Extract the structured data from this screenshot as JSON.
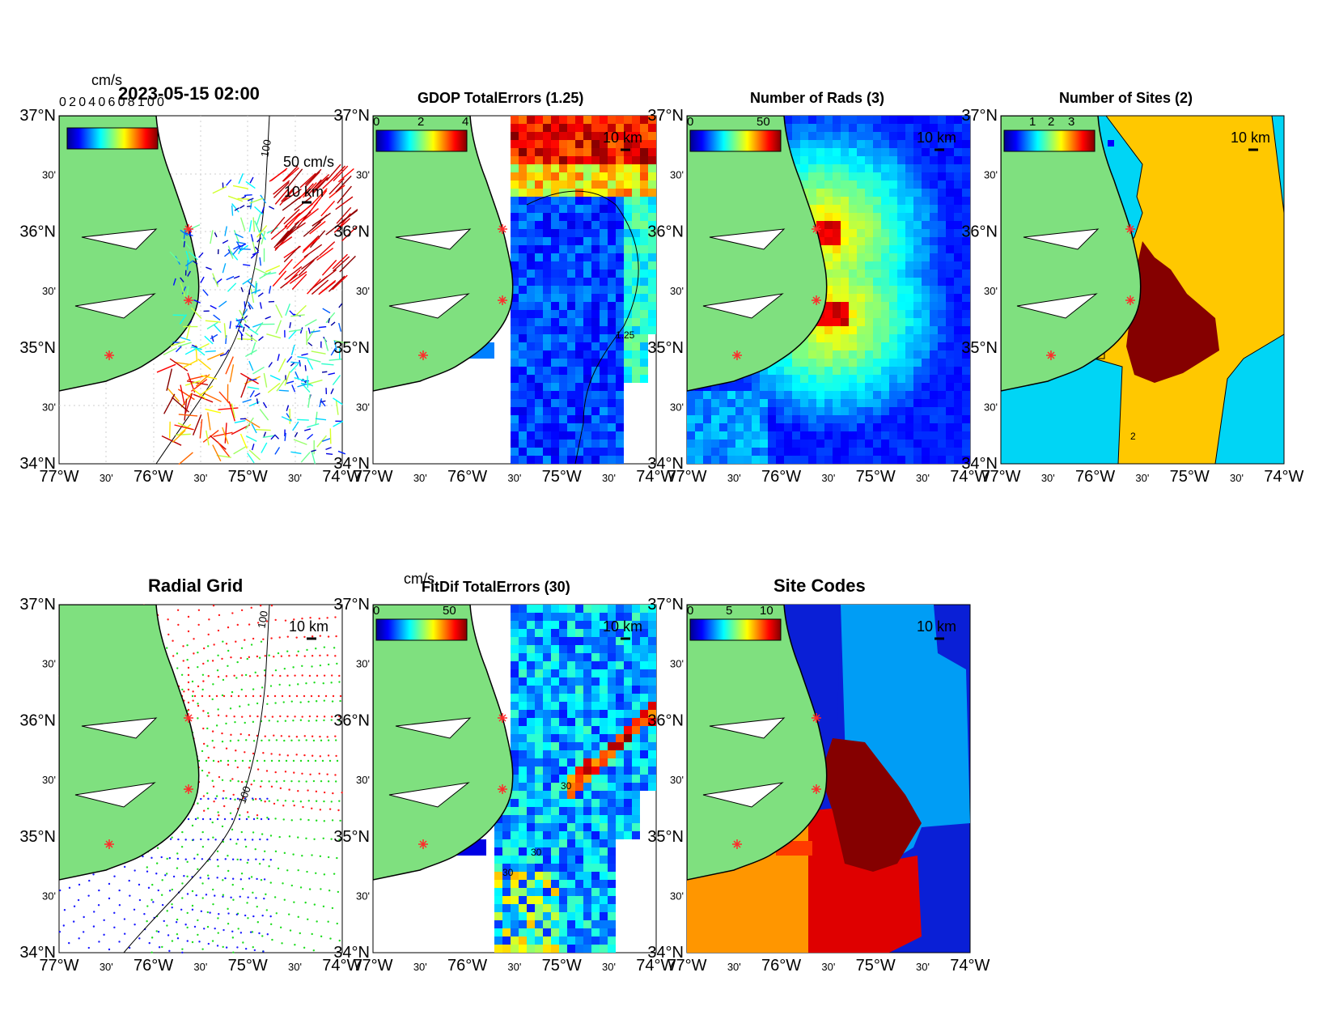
{
  "figure": {
    "timestamp": "2023-05-15 02:00",
    "colors": {
      "land": "#7fe07f",
      "ocean": "#ffffff",
      "site_marker": "#ff2a2a",
      "deep_blue": "#0a1fd6",
      "navy": "#00008f",
      "cyan": "#00d5f5",
      "gold": "#ffc800",
      "maroon": "#850000",
      "sky": "#009df5",
      "orange": "#ff9600",
      "red": "#df0000",
      "grid_red": "#ff1a1a",
      "grid_green": "#1fdc1f",
      "grid_blue": "#1a1aff"
    }
  },
  "axes": {
    "x_labels": [
      "77°W",
      "30'",
      "76°W",
      "30'",
      "75°W",
      "30'",
      "74°W"
    ],
    "y_labels": [
      "37°N",
      "30'",
      "36°N",
      "30'",
      "35°N",
      "30'",
      "34°N"
    ],
    "scale_bar_label": "10 km",
    "contour_100_label": "100"
  },
  "panels": {
    "totals": {
      "colorbar_unit": "cm/s",
      "legend_vector": "50 cm/s",
      "garbled_colorbar_text": "0 2 0 4 0 6 0 8 1 0 0"
    },
    "gdop": {
      "title": "GDOP TotalErrors (1.25)",
      "colorbar_ticks": [
        "0",
        "2",
        "4"
      ],
      "contour_label": "1.25"
    },
    "rads": {
      "title": "Number of Rads (3)",
      "colorbar_ticks": [
        "0",
        "50"
      ]
    },
    "sites": {
      "title": "Number of Sites (2)",
      "colorbar_ticks": [
        "1",
        "2",
        "3"
      ],
      "contour_label": "2"
    },
    "radial_grid": {
      "title": "Radial Grid"
    },
    "fitdif": {
      "title": "FitDif TotalErrors (30)",
      "colorbar_unit": "cm/s",
      "colorbar_ticks": [
        "0",
        "50"
      ],
      "contour_label": "30"
    },
    "site_codes": {
      "title": "Site Codes",
      "colorbar_ticks": [
        "0",
        "5",
        "10"
      ]
    }
  }
}
